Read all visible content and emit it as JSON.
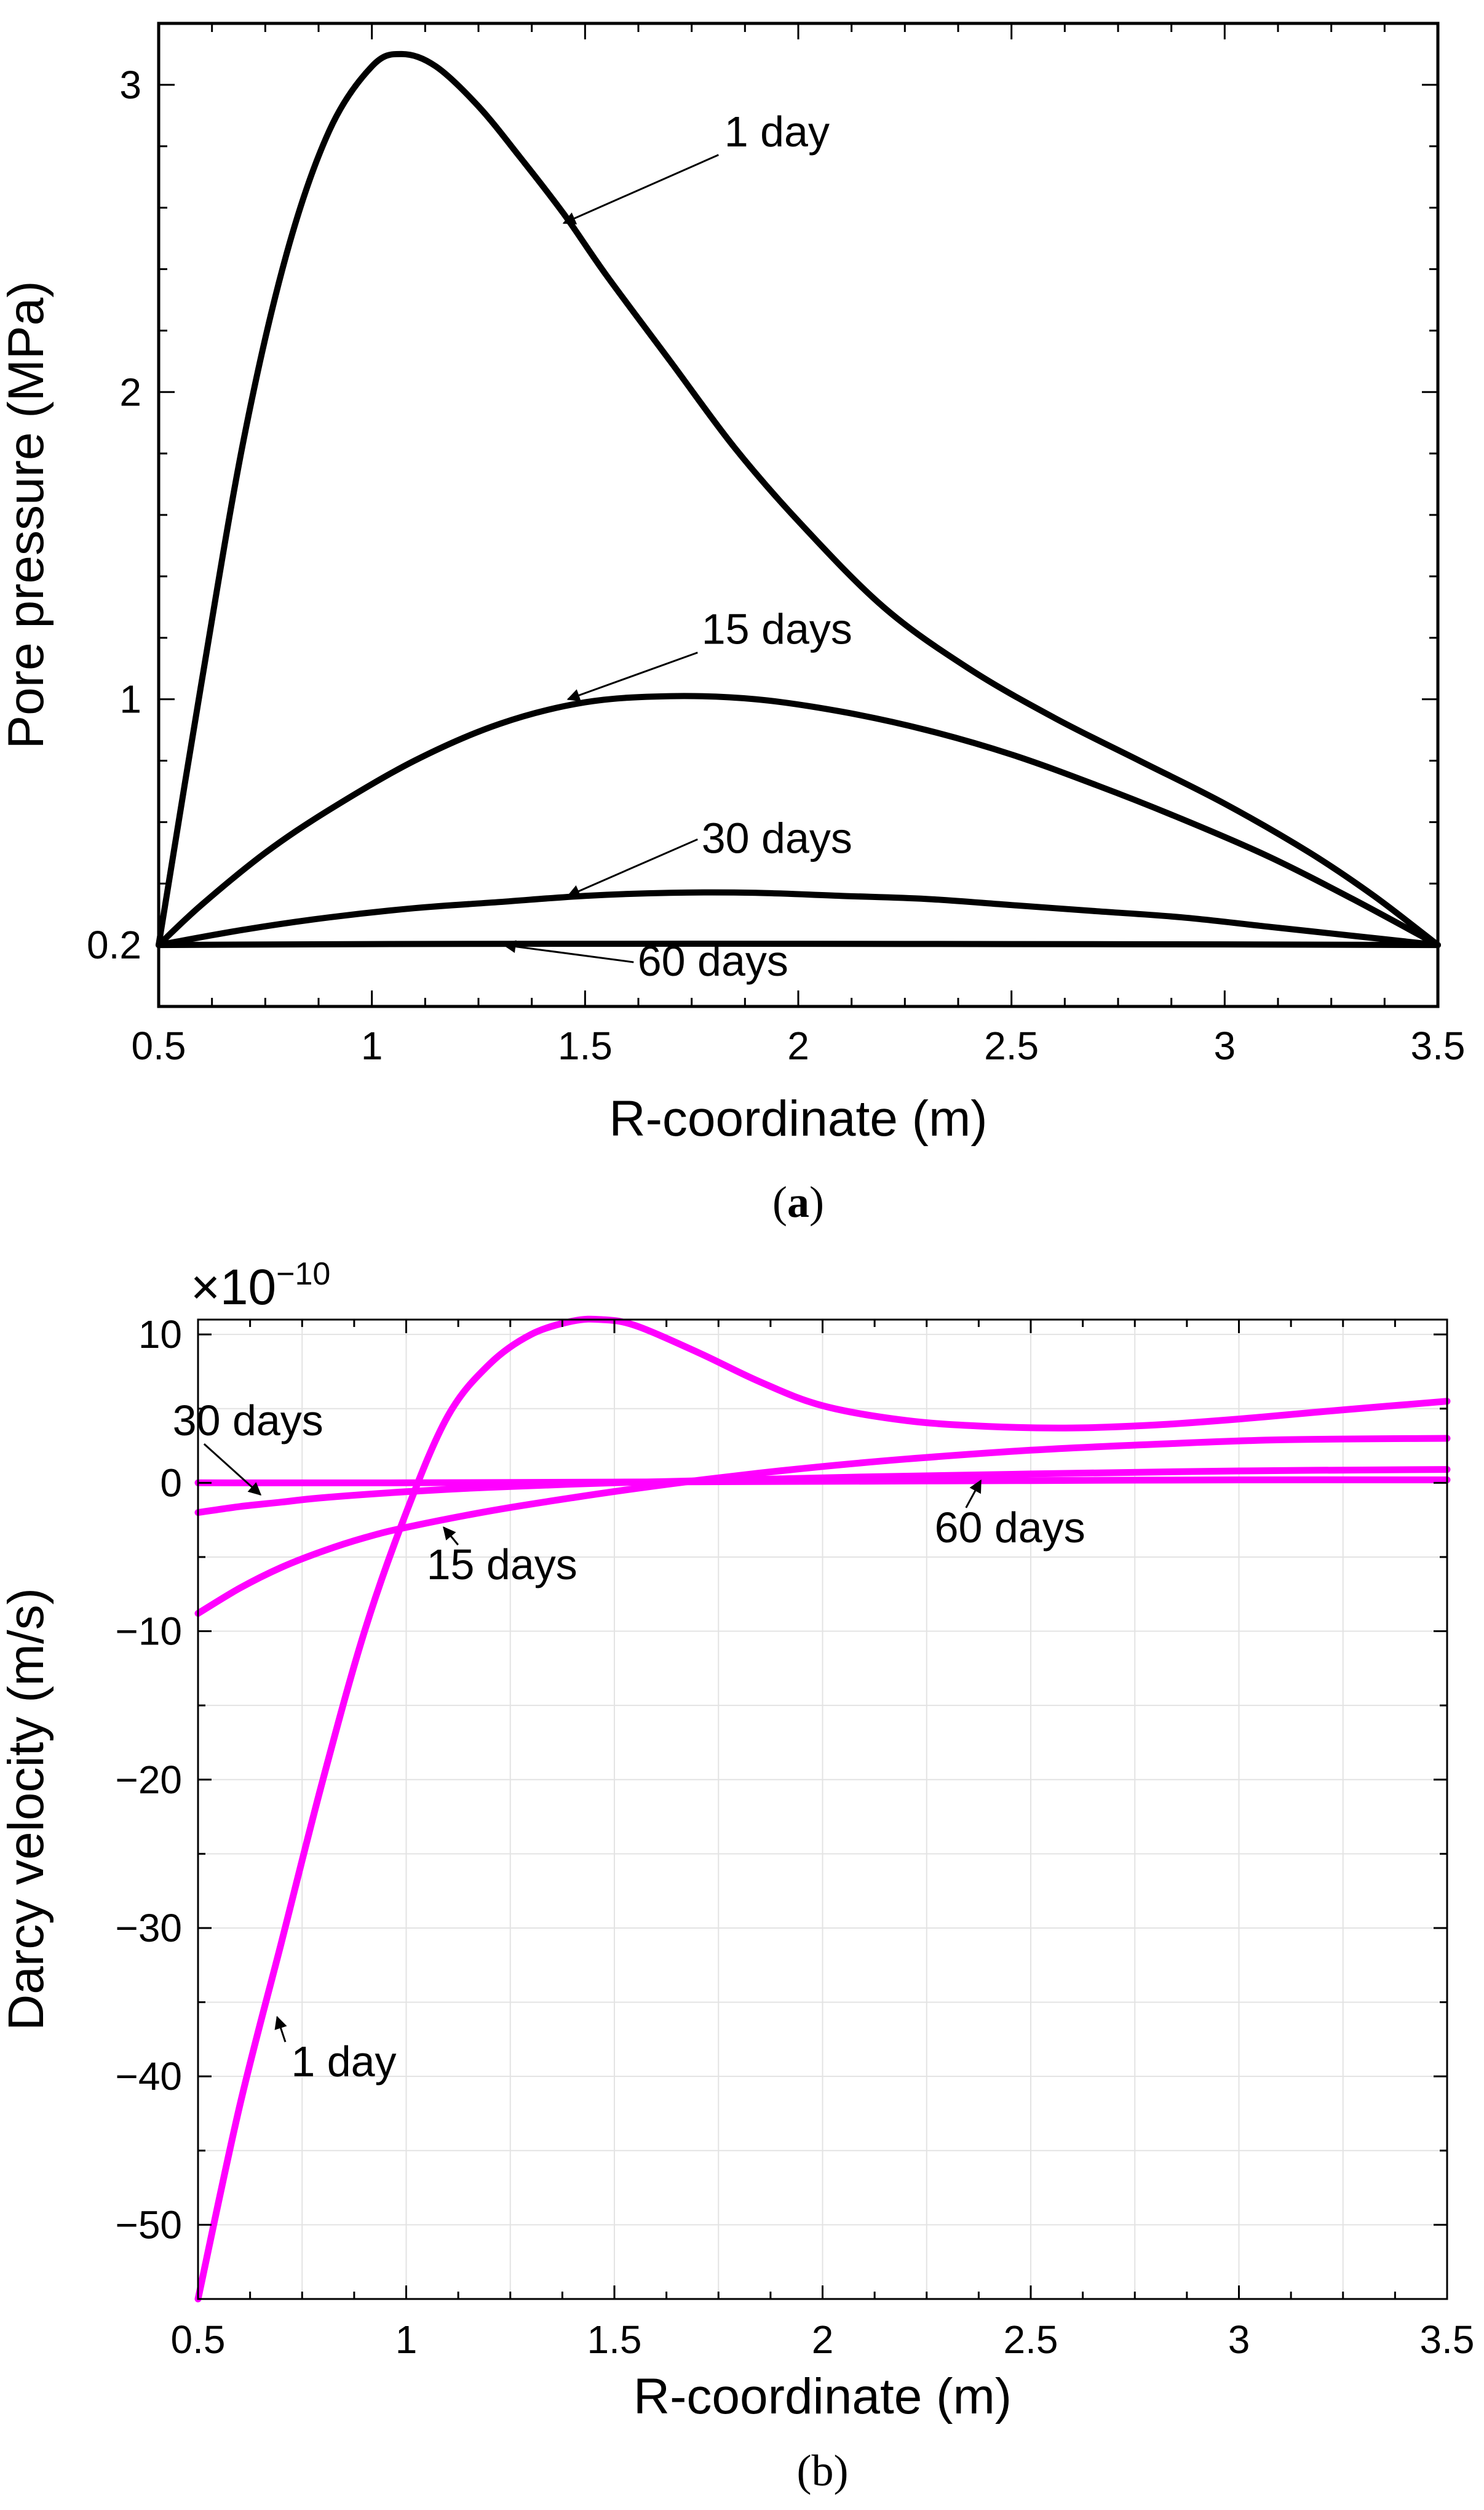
{
  "chart_data": [
    {
      "type": "line",
      "panel": "a",
      "caption_letter": "a",
      "xlabel": "R-coordinate (m)",
      "ylabel": "Pore pressure (MPa)",
      "xlim": [
        0.5,
        3.5
      ],
      "ylim": [
        0,
        3.2
      ],
      "grid": false,
      "line_color": "#000000",
      "x_ticks": [
        0.5,
        1,
        1.5,
        2,
        2.5,
        3,
        3.5
      ],
      "x_tick_labels": [
        "0.5",
        "1",
        "1.5",
        "2",
        "2.5",
        "3",
        "3.5"
      ],
      "y_ticks": [
        0.2,
        1,
        2,
        3
      ],
      "y_tick_labels": [
        "0.2",
        "1",
        "2",
        "3"
      ],
      "series": [
        {
          "name": "1 day",
          "x": [
            0.5,
            0.6,
            0.7,
            0.8,
            0.9,
            1.0,
            1.07,
            1.15,
            1.25,
            1.35,
            1.45,
            1.55,
            1.7,
            1.85,
            2.0,
            2.2,
            2.4,
            2.6,
            2.8,
            3.0,
            3.2,
            3.35,
            3.5
          ],
          "values": [
            0.2,
            1.05,
            1.85,
            2.45,
            2.85,
            3.06,
            3.1,
            3.06,
            2.93,
            2.76,
            2.58,
            2.38,
            2.1,
            1.82,
            1.58,
            1.3,
            1.1,
            0.94,
            0.8,
            0.66,
            0.5,
            0.36,
            0.2
          ]
        },
        {
          "name": "15 days",
          "x": [
            0.5,
            0.6,
            0.75,
            0.9,
            1.1,
            1.3,
            1.5,
            1.7,
            1.9,
            2.1,
            2.3,
            2.5,
            2.7,
            2.9,
            3.1,
            3.3,
            3.5
          ],
          "values": [
            0.2,
            0.33,
            0.5,
            0.64,
            0.8,
            0.92,
            0.99,
            1.01,
            1.0,
            0.96,
            0.9,
            0.82,
            0.72,
            0.61,
            0.49,
            0.35,
            0.2
          ]
        },
        {
          "name": "30 days",
          "x": [
            0.5,
            0.7,
            0.9,
            1.1,
            1.3,
            1.5,
            1.7,
            1.9,
            2.1,
            2.3,
            2.5,
            2.7,
            2.9,
            3.1,
            3.3,
            3.5
          ],
          "values": [
            0.2,
            0.25,
            0.29,
            0.32,
            0.34,
            0.36,
            0.37,
            0.37,
            0.36,
            0.35,
            0.33,
            0.31,
            0.29,
            0.26,
            0.23,
            0.2
          ]
        },
        {
          "name": "60 days",
          "x": [
            0.5,
            1.0,
            1.5,
            2.0,
            2.5,
            3.0,
            3.5
          ],
          "values": [
            0.2,
            0.203,
            0.204,
            0.204,
            0.203,
            0.202,
            0.2
          ]
        }
      ],
      "annotations": [
        {
          "text": "1 day",
          "x": 1.95,
          "y": 2.8,
          "arrow_to": [
            1.45,
            2.55
          ]
        },
        {
          "text": "15 days",
          "x": 1.95,
          "y": 1.18,
          "arrow_to": [
            1.46,
            1.0
          ]
        },
        {
          "text": "30 days",
          "x": 1.95,
          "y": 0.5,
          "arrow_to": [
            1.46,
            0.36
          ]
        },
        {
          "text": "60 days",
          "x": 1.8,
          "y": 0.1,
          "arrow_to": [
            1.31,
            0.2
          ]
        }
      ]
    },
    {
      "type": "line",
      "panel": "b",
      "caption_letter": "(b)",
      "xlabel": "R-coordinate (m)",
      "ylabel": "Darcy velocity (m/s)",
      "y_scale_label": "×10",
      "y_scale_exponent": "−10",
      "xlim": [
        0.5,
        3.5
      ],
      "ylim": [
        -55,
        11
      ],
      "grid": true,
      "line_color": "#ff00ff",
      "x_ticks": [
        0.5,
        1,
        1.5,
        2,
        2.5,
        3,
        3.5
      ],
      "x_tick_labels": [
        "0.5",
        "1",
        "1.5",
        "2",
        "2.5",
        "3",
        "3.5"
      ],
      "y_ticks": [
        10,
        0,
        -10,
        -20,
        -30,
        -40,
        -50
      ],
      "y_tick_labels": [
        "10",
        "0",
        "−10",
        "−20",
        "−30",
        "−40",
        "−50"
      ],
      "series": [
        {
          "name": "1 day",
          "x": [
            0.5,
            0.6,
            0.7,
            0.8,
            0.9,
            1.0,
            1.1,
            1.2,
            1.3,
            1.4,
            1.47,
            1.55,
            1.7,
            1.85,
            2.0,
            2.2,
            2.4,
            2.6,
            2.8,
            3.0,
            3.2,
            3.5
          ],
          "values": [
            -55,
            -42,
            -31,
            -20,
            -10,
            -2,
            4.5,
            8,
            10,
            10.9,
            11,
            10.6,
            8.8,
            6.8,
            5.2,
            4.2,
            3.8,
            3.7,
            3.9,
            4.3,
            4.8,
            5.5
          ]
        },
        {
          "name": "15 days",
          "x": [
            0.5,
            0.6,
            0.7,
            0.8,
            0.9,
            1.0,
            1.2,
            1.4,
            1.6,
            1.8,
            2.0,
            2.2,
            2.5,
            2.8,
            3.1,
            3.5
          ],
          "values": [
            -8.8,
            -7.1,
            -5.7,
            -4.6,
            -3.7,
            -3.0,
            -1.9,
            -1.0,
            -0.2,
            0.5,
            1.1,
            1.6,
            2.2,
            2.6,
            2.9,
            3.0
          ]
        },
        {
          "name": "30 days",
          "x": [
            0.5,
            0.6,
            0.7,
            0.8,
            1.0,
            1.2,
            1.5,
            1.8,
            2.1,
            2.5,
            3.0,
            3.5
          ],
          "values": [
            -2.0,
            -1.6,
            -1.3,
            -1.0,
            -0.6,
            -0.3,
            0.0,
            0.2,
            0.4,
            0.6,
            0.8,
            0.9
          ]
        },
        {
          "name": "60 days",
          "x": [
            0.5,
            1.0,
            1.5,
            2.0,
            2.5,
            3.0,
            3.5
          ],
          "values": [
            0.0,
            0.0,
            0.05,
            0.1,
            0.15,
            0.2,
            0.2
          ]
        }
      ],
      "annotations": [
        {
          "text": "30 days",
          "x": 0.62,
          "y": 3.2,
          "arrow_to": [
            0.65,
            -0.8
          ]
        },
        {
          "text": "15 days",
          "x": 1.23,
          "y": -6.5,
          "arrow_to": [
            1.09,
            -3.0
          ]
        },
        {
          "text": "60 days",
          "x": 2.45,
          "y": -4.0,
          "arrow_to": [
            2.38,
            0.15
          ]
        },
        {
          "text": "1 day",
          "x": 0.85,
          "y": -40,
          "arrow_to": [
            0.69,
            -36
          ]
        }
      ]
    }
  ]
}
